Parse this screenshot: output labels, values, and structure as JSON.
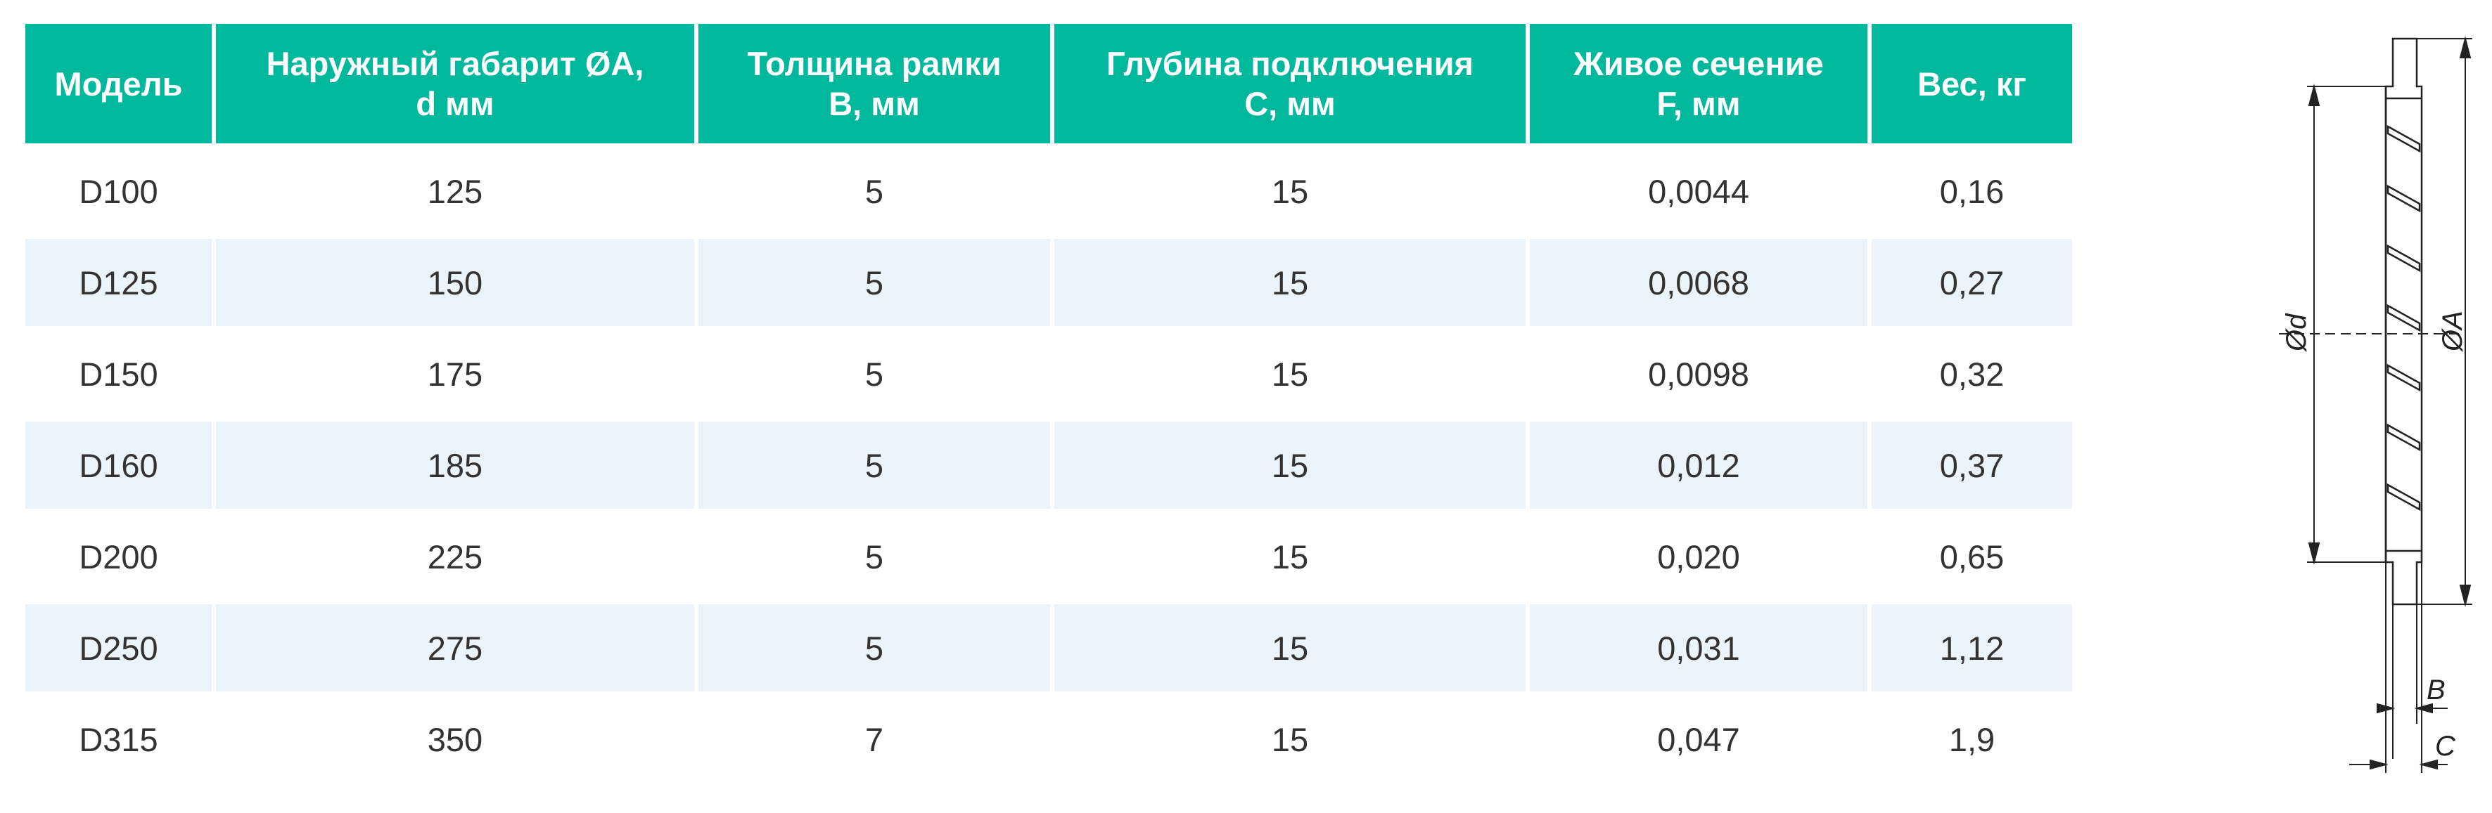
{
  "table": {
    "headers": [
      "Модель",
      "Наружный габарит ØA, d мм",
      "Толщина рамки B, мм",
      "Глубина подключения C, мм",
      "Живое сечение F, мм",
      "Вес, кг"
    ],
    "header_lines": [
      [
        "Модель"
      ],
      [
        "Наружный габарит ØA,",
        "d мм"
      ],
      [
        "Толщина рамки",
        "B, мм"
      ],
      [
        "Глубина подключения",
        "C, мм"
      ],
      [
        "Живое сечение",
        "F, мм"
      ],
      [
        "Вес, кг"
      ]
    ],
    "rows": [
      [
        "D100",
        "125",
        "5",
        "15",
        "0,0044",
        "0,16"
      ],
      [
        "D125",
        "150",
        "5",
        "15",
        "0,0068",
        "0,27"
      ],
      [
        "D150",
        "175",
        "5",
        "15",
        "0,0098",
        "0,32"
      ],
      [
        "D160",
        "185",
        "5",
        "15",
        "0,012",
        "0,37"
      ],
      [
        "D200",
        "225",
        "5",
        "15",
        "0,020",
        "0,65"
      ],
      [
        "D250",
        "275",
        "5",
        "15",
        "0,031",
        "1,12"
      ],
      [
        "D315",
        "350",
        "7",
        "15",
        "0,047",
        "1,9"
      ]
    ]
  },
  "drawing": {
    "label_d": "Ød",
    "label_A": "ØA",
    "label_B": "B",
    "label_C": "C"
  },
  "colors": {
    "header_bg": "#00b89c",
    "alt_row_bg": "#eaf4fa"
  }
}
